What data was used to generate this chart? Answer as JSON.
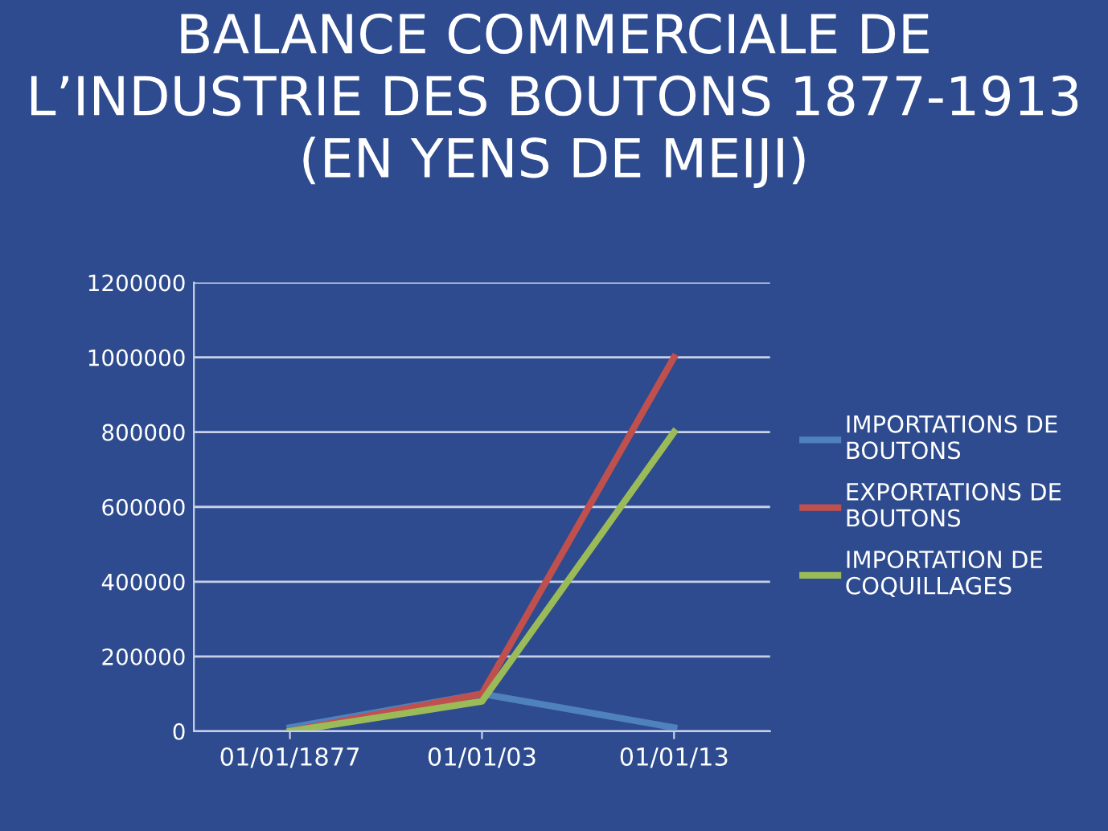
{
  "chart_data": {
    "type": "line",
    "title": "BALANCE COMMERCIALE DE L’INDUSTRIE DES BOUTONS 1877-1913 (EN YENS DE MEIJI)",
    "categories": [
      "01/01/1877",
      "01/01/03",
      "01/01/13"
    ],
    "series": [
      {
        "name": "IMPORTATIONS DE BOUTONS",
        "color": "#4f81bd",
        "values": [
          10000,
          100000,
          10000
        ]
      },
      {
        "name": "EXPORTATIONS DE BOUTONS",
        "color": "#c0504d",
        "values": [
          0,
          100000,
          1000000
        ]
      },
      {
        "name": "IMPORTATION DE COQUILLAGES",
        "color": "#9bbb59",
        "values": [
          0,
          80000,
          800000
        ]
      }
    ],
    "ylim": [
      0,
      1200000
    ],
    "yticks": [
      0,
      200000,
      400000,
      600000,
      800000,
      1000000,
      1200000
    ],
    "grid": "y",
    "legend": "right",
    "marker": "none",
    "line_style": "solid"
  }
}
